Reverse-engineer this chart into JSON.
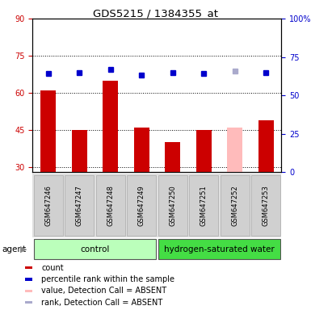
{
  "title": "GDS5215 / 1384355_at",
  "samples": [
    "GSM647246",
    "GSM647247",
    "GSM647248",
    "GSM647249",
    "GSM647250",
    "GSM647251",
    "GSM647252",
    "GSM647253"
  ],
  "bar_values": [
    61,
    45,
    65,
    46,
    40,
    45,
    null,
    49
  ],
  "bar_color": "#cc0000",
  "absent_bar_values": [
    null,
    null,
    null,
    null,
    null,
    null,
    46,
    null
  ],
  "absent_bar_color": "#ffbbbb",
  "rank_values": [
    64,
    65,
    67,
    63,
    65,
    64,
    null,
    65
  ],
  "rank_color": "#0000cc",
  "absent_rank_values": [
    null,
    null,
    null,
    null,
    null,
    null,
    66,
    null
  ],
  "absent_rank_color": "#aaaacc",
  "ylim_left": [
    28,
    90
  ],
  "ylim_right": [
    0,
    100
  ],
  "yticks_left": [
    30,
    45,
    60,
    75,
    90
  ],
  "yticks_right": [
    0,
    25,
    50,
    75,
    100
  ],
  "groups": [
    {
      "label": "control",
      "start": 0,
      "end": 3,
      "color": "#bbffbb"
    },
    {
      "label": "hydrogen-saturated water",
      "start": 4,
      "end": 7,
      "color": "#44dd44"
    }
  ],
  "agent_label": "agent",
  "legend_items": [
    {
      "label": "count",
      "color": "#cc0000"
    },
    {
      "label": "percentile rank within the sample",
      "color": "#0000cc"
    },
    {
      "label": "value, Detection Call = ABSENT",
      "color": "#ffbbbb"
    },
    {
      "label": "rank, Detection Call = ABSENT",
      "color": "#aaaacc"
    }
  ],
  "bar_width": 0.5,
  "marker_size": 5,
  "left_tick_color": "#cc0000",
  "right_tick_color": "#0000cc",
  "title_fontsize": 9.5,
  "tick_fontsize": 7,
  "sample_fontsize": 6,
  "legend_fontsize": 7,
  "group_fontsize": 7.5
}
